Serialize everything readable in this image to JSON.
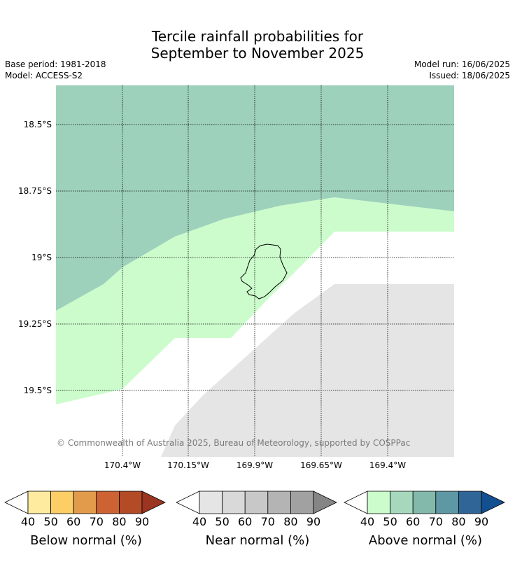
{
  "title_line1": "Tercile rainfall probabilities for",
  "title_line2": "September to November 2025",
  "meta": {
    "base_period": "Base period: 1981-2018",
    "model": "Model: ACCESS-S2",
    "model_run": "Model run: 16/06/2025",
    "issued": "Issued: 18/06/2025"
  },
  "map": {
    "lat_labels": [
      "18.5°S",
      "18.75°S",
      "19°S",
      "19.25°S",
      "19.5°S"
    ],
    "lon_labels": [
      "170.4°W",
      "170.15°W",
      "169.9°W",
      "169.65°W",
      "169.4°W"
    ],
    "copyright": "© Commonwealth of Australia 2025, Bureau of Meteorology, supported by COSPPac",
    "colors": {
      "above_50": "#9ed1bb",
      "above_40": "#ccfccc",
      "near_40": "#e5e5e5",
      "no_dominant": "#ffffff"
    }
  },
  "legends": [
    {
      "label": "Below normal (%)",
      "ticks": [
        "40",
        "50",
        "60",
        "70",
        "80",
        "90"
      ],
      "colors": [
        "#ffffff",
        "#feeba0",
        "#fdcd66",
        "#e29a4b",
        "#cd6232",
        "#b24b26",
        "#9b3420"
      ]
    },
    {
      "label": "Near normal (%)",
      "ticks": [
        "40",
        "50",
        "60",
        "70",
        "80",
        "90"
      ],
      "colors": [
        "#ffffff",
        "#e5e5e5",
        "#d9d9d9",
        "#c8c8c8",
        "#b4b4b4",
        "#a1a1a1",
        "#858585"
      ]
    },
    {
      "label": "Above normal (%)",
      "ticks": [
        "40",
        "50",
        "60",
        "70",
        "80",
        "90"
      ],
      "colors": [
        "#ffffff",
        "#ccfccc",
        "#a6d8bd",
        "#83b9ab",
        "#5e98a4",
        "#306598",
        "#114f8f"
      ]
    }
  ]
}
